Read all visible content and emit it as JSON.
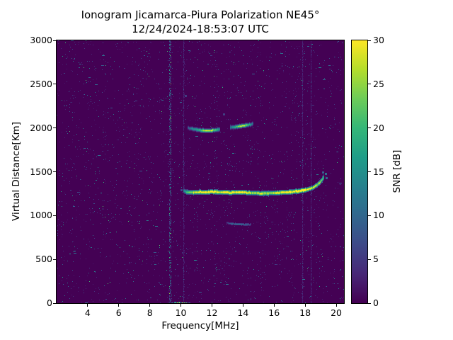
{
  "figure": {
    "title": "Ionogram Jicamarca-Piura Polarization NE45°",
    "subtitle": "12/24/2024-18:53:07 UTC"
  },
  "chart_data": {
    "type": "heatmap",
    "title": "Ionogram Jicamarca-Piura Polarization NE45°",
    "subtitle": "12/24/2024-18:53:07 UTC",
    "xlabel": "Frequency[MHz]",
    "ylabel": "Virtual Distance[Km]",
    "xlim": [
      2,
      20.5
    ],
    "ylim": [
      0,
      3000
    ],
    "x_ticks": [
      4,
      6,
      8,
      10,
      12,
      14,
      16,
      18,
      20
    ],
    "y_ticks": [
      0,
      500,
      1000,
      1500,
      2000,
      2500,
      3000
    ],
    "grid": false,
    "colorbar": {
      "label": "SNR [dB]",
      "min": 0,
      "max": 30,
      "ticks": [
        0,
        5,
        10,
        15,
        20,
        25,
        30
      ],
      "colormap": "viridis"
    },
    "background_snr_db": 0,
    "traces": [
      {
        "name": "f-region-echo",
        "thickness_km": 30,
        "points": [
          [
            10.15,
            1285,
            12
          ],
          [
            10.4,
            1272,
            20
          ],
          [
            10.8,
            1268,
            26
          ],
          [
            11.2,
            1272,
            29
          ],
          [
            11.6,
            1268,
            30
          ],
          [
            12.0,
            1276,
            30
          ],
          [
            12.4,
            1270,
            28
          ],
          [
            12.8,
            1272,
            30
          ],
          [
            13.2,
            1266,
            29
          ],
          [
            13.6,
            1268,
            30
          ],
          [
            14.0,
            1270,
            30
          ],
          [
            14.4,
            1265,
            27
          ],
          [
            14.8,
            1260,
            25
          ],
          [
            15.2,
            1257,
            27
          ],
          [
            15.6,
            1258,
            24
          ],
          [
            16.0,
            1262,
            27
          ],
          [
            16.4,
            1266,
            29
          ],
          [
            16.8,
            1270,
            30
          ],
          [
            17.2,
            1276,
            30
          ],
          [
            17.6,
            1284,
            30
          ],
          [
            18.0,
            1296,
            30
          ],
          [
            18.3,
            1310,
            29
          ],
          [
            18.6,
            1335,
            27
          ],
          [
            18.85,
            1368,
            25
          ],
          [
            19.05,
            1408,
            23
          ],
          [
            19.2,
            1450,
            20
          ]
        ]
      },
      {
        "name": "second-hop-echo-a",
        "thickness_km": 24,
        "points": [
          [
            10.45,
            2005,
            8
          ],
          [
            10.75,
            1992,
            14
          ],
          [
            11.05,
            1984,
            18
          ],
          [
            11.35,
            1977,
            22
          ],
          [
            11.65,
            1972,
            26
          ],
          [
            11.95,
            1974,
            28
          ],
          [
            12.2,
            1980,
            22
          ],
          [
            12.5,
            1990,
            12
          ]
        ]
      },
      {
        "name": "second-hop-echo-b",
        "thickness_km": 24,
        "points": [
          [
            13.15,
            2008,
            10
          ],
          [
            13.45,
            2016,
            18
          ],
          [
            13.75,
            2024,
            25
          ],
          [
            14.05,
            2030,
            27
          ],
          [
            14.35,
            2040,
            20
          ],
          [
            14.6,
            2050,
            10
          ]
        ]
      },
      {
        "name": "low-virtual-height-echo",
        "thickness_km": 14,
        "points": [
          [
            12.95,
            918,
            6
          ],
          [
            13.3,
            910,
            9
          ],
          [
            13.7,
            905,
            11
          ],
          [
            14.1,
            903,
            9
          ],
          [
            14.5,
            902,
            6
          ]
        ]
      }
    ],
    "scatter_points": [
      [
        19.3,
        1480,
        18
      ],
      [
        19.35,
        1430,
        16
      ],
      [
        19.15,
        1500,
        14
      ],
      [
        10.0,
        1292,
        10
      ],
      [
        12.75,
        2160,
        9
      ],
      [
        10.3,
        2370,
        9
      ],
      [
        9.45,
        3,
        16
      ],
      [
        9.6,
        5,
        24
      ],
      [
        9.75,
        2,
        30
      ],
      [
        9.9,
        6,
        29
      ],
      [
        10.05,
        2,
        30
      ],
      [
        10.2,
        4,
        26
      ],
      [
        10.35,
        2,
        22
      ],
      [
        10.5,
        3,
        14
      ]
    ],
    "interference": {
      "strong_bands_mhz": [
        9.3
      ],
      "faint_lines_mhz": [
        10.15,
        17.8,
        18.35
      ]
    }
  }
}
